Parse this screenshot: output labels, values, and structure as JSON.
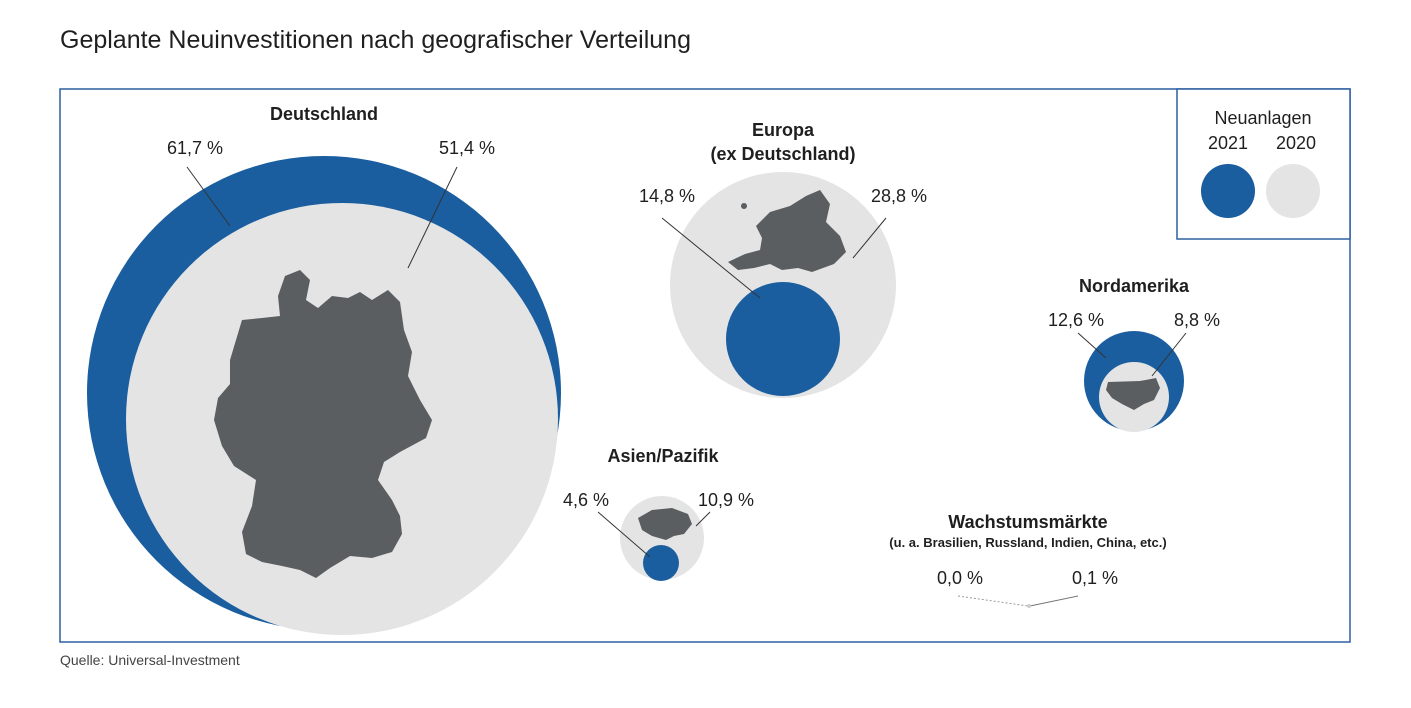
{
  "title": "Geplante Neuinvestitionen nach geografischer Verteilung",
  "source": "Quelle: Universal-Investment",
  "colors": {
    "y2021": "#1a5ea0",
    "y2020": "#e4e4e4",
    "map": "#5a5e60",
    "frame": "#2d5fa0"
  },
  "chart_data": {
    "type": "bubble-comparison",
    "title": "Geplante Neuinvestitionen nach geografischer Verteilung",
    "unit": "%",
    "legend": {
      "title": "Neuanlagen",
      "series": [
        "2021",
        "2020"
      ]
    },
    "regions": [
      {
        "name": "Deutschland",
        "subtitle": "",
        "v2021": 61.7,
        "v2020": 51.4,
        "label2021": "61,7 %",
        "label2020": "51,4 %"
      },
      {
        "name": "Europa",
        "subtitle": "(ex Deutschland)",
        "v2021": 14.8,
        "v2020": 28.8,
        "label2021": "14,8 %",
        "label2020": "28,8 %"
      },
      {
        "name": "Nordamerika",
        "subtitle": "",
        "v2021": 12.6,
        "v2020": 8.8,
        "label2021": "12,6 %",
        "label2020": "8,8 %"
      },
      {
        "name": "Asien/Pazifik",
        "subtitle": "",
        "v2021": 4.6,
        "v2020": 10.9,
        "label2021": "4,6 %",
        "label2020": "10,9 %"
      },
      {
        "name": "Wachstumsmärkte",
        "subtitle": "(u. a. Brasilien, Russland, Indien, China, etc.)",
        "v2021": 0.0,
        "v2020": 0.1,
        "label2021": "0,0 %",
        "label2020": "0,1 %"
      }
    ]
  }
}
